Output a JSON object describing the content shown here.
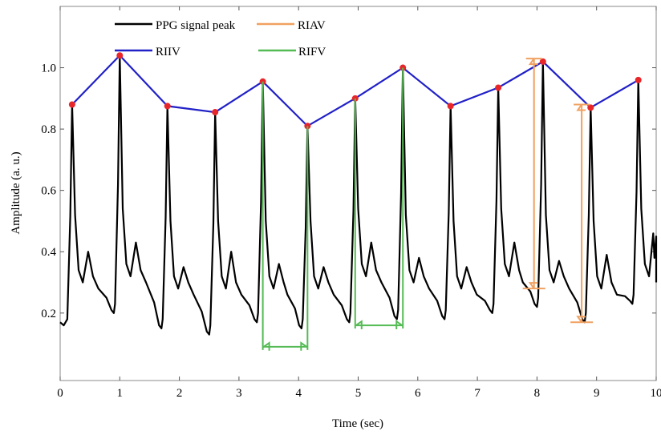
{
  "chart_data": {
    "type": "line",
    "xlabel": "Time (sec)",
    "ylabel": "Amplitude (a. u.)",
    "xlim": [
      0,
      10
    ],
    "ylim": [
      -0.02,
      1.2
    ],
    "x_ticks": [
      0,
      1,
      2,
      3,
      4,
      5,
      6,
      7,
      8,
      9,
      10
    ],
    "y_ticks": [
      0.2,
      0.4,
      0.6,
      0.8,
      1.0
    ],
    "x_tick_labels": [
      "0",
      "1",
      "2",
      "3",
      "4",
      "5",
      "6",
      "7",
      "8",
      "9",
      "10"
    ],
    "y_tick_labels": [
      "0.2",
      "0.4",
      "0.6",
      "0.8",
      "1.0"
    ],
    "grid": false,
    "legend": {
      "placement": "top",
      "entries": [
        {
          "label": "PPG signal peak",
          "color": "#000000"
        },
        {
          "label": "RIIV",
          "color": "#2121c8"
        },
        {
          "label": "RIAV",
          "color": "#f0a060"
        },
        {
          "label": "RIFV",
          "color": "#55bb55"
        }
      ]
    },
    "series": [
      {
        "name": "PPG signal peak",
        "color": "#000000",
        "beats": [
          {
            "t": 0.2,
            "peak": 0.88,
            "base": 0.15,
            "dicrotic": 0.4,
            "plateau": 0.3
          },
          {
            "t": 1.0,
            "peak": 1.04,
            "base": 0.2,
            "dicrotic": 0.43,
            "plateau": 0.32
          },
          {
            "t": 1.8,
            "peak": 0.875,
            "base": 0.15,
            "dicrotic": 0.35,
            "plateau": 0.28
          },
          {
            "t": 2.6,
            "peak": 0.855,
            "base": 0.13,
            "dicrotic": 0.4,
            "plateau": 0.28
          },
          {
            "t": 3.4,
            "peak": 0.955,
            "base": 0.17,
            "dicrotic": 0.36,
            "plateau": 0.28
          },
          {
            "t": 4.15,
            "peak": 0.81,
            "base": 0.15,
            "dicrotic": 0.35,
            "plateau": 0.28
          },
          {
            "t": 4.95,
            "peak": 0.9,
            "base": 0.17,
            "dicrotic": 0.43,
            "plateau": 0.32
          },
          {
            "t": 5.75,
            "peak": 1.0,
            "base": 0.18,
            "dicrotic": 0.38,
            "plateau": 0.3
          },
          {
            "t": 6.55,
            "peak": 0.875,
            "base": 0.18,
            "dicrotic": 0.35,
            "plateau": 0.28
          },
          {
            "t": 7.35,
            "peak": 0.935,
            "base": 0.2,
            "dicrotic": 0.43,
            "plateau": 0.32
          },
          {
            "t": 8.1,
            "peak": 1.02,
            "base": 0.22,
            "dicrotic": 0.37,
            "plateau": 0.3
          },
          {
            "t": 8.9,
            "peak": 0.87,
            "base": 0.17,
            "dicrotic": 0.39,
            "plateau": 0.28
          },
          {
            "t": 9.7,
            "peak": 0.96,
            "base": 0.23,
            "dicrotic": 0.38,
            "plateau": 0.32
          }
        ],
        "start_value": 0.17,
        "end_value": 0.46
      },
      {
        "name": "RIIV",
        "color": "#2121c8",
        "marker_color": "#e8262a",
        "x": [
          0.2,
          1.0,
          1.8,
          2.6,
          3.4,
          4.15,
          4.95,
          5.75,
          6.55,
          7.35,
          8.1,
          8.9,
          9.7
        ],
        "y": [
          0.88,
          1.04,
          0.875,
          0.855,
          0.955,
          0.81,
          0.9,
          1.0,
          0.875,
          0.935,
          1.02,
          0.87,
          0.96
        ]
      }
    ],
    "annotations": [
      {
        "name": "RIAV",
        "color": "#f0a060",
        "type": "vertical-double-arrow",
        "x": 7.95,
        "y1": 0.28,
        "y2": 1.03
      },
      {
        "name": "RIAV",
        "color": "#f0a060",
        "type": "vertical-double-arrow",
        "x": 8.75,
        "y1": 0.17,
        "y2": 0.88
      },
      {
        "name": "RIFV",
        "color": "#55bb55",
        "type": "horizontal-double-arrow",
        "x1": 3.4,
        "x2": 4.15,
        "y": 0.09,
        "drop_from": [
          0.955,
          0.81
        ]
      },
      {
        "name": "RIFV",
        "color": "#55bb55",
        "type": "horizontal-double-arrow",
        "x1": 4.95,
        "x2": 5.75,
        "y": 0.16,
        "drop_from": [
          0.9,
          1.0
        ]
      }
    ]
  }
}
